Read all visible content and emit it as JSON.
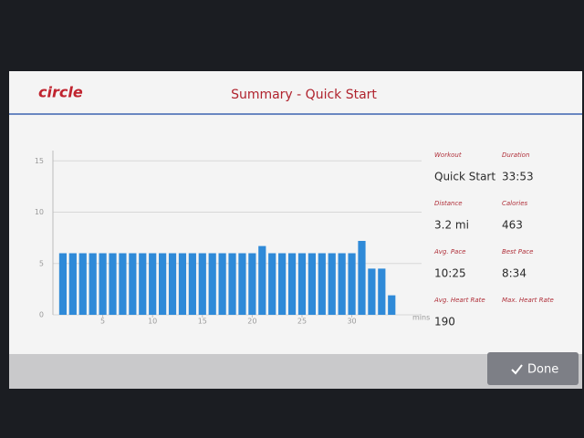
{
  "header": {
    "logo": "circle",
    "title": "Summary - Quick Start"
  },
  "chart_data": {
    "type": "bar",
    "x": [
      1,
      2,
      3,
      4,
      5,
      6,
      7,
      8,
      9,
      10,
      11,
      12,
      13,
      14,
      15,
      16,
      17,
      18,
      19,
      20,
      21,
      22,
      23,
      24,
      25,
      26,
      27,
      28,
      29,
      30,
      31,
      32,
      33,
      34
    ],
    "values": [
      6,
      6,
      6,
      6,
      6,
      6,
      6,
      6,
      6,
      6,
      6,
      6,
      6,
      6,
      6,
      6,
      6,
      6,
      6,
      6,
      6.7,
      6,
      6,
      6,
      6,
      6,
      6,
      6,
      6,
      6,
      7.2,
      4.5,
      4.5,
      1.9
    ],
    "color": "#2f8ad8",
    "xlim": [
      0,
      37
    ],
    "ylim": [
      0,
      16
    ],
    "xticks": [
      5,
      10,
      15,
      20,
      25,
      30
    ],
    "yticks": [
      0,
      5,
      10,
      15
    ],
    "x_label": "mins",
    "grid": true
  },
  "stats": [
    {
      "label": "Workout",
      "value": "Quick Start"
    },
    {
      "label": "Duration",
      "value": "33:53"
    },
    {
      "label": "Distance",
      "value": "3.2 mi"
    },
    {
      "label": "Calories",
      "value": "463"
    },
    {
      "label": "Avg. Pace",
      "value": "10:25"
    },
    {
      "label": "Best Pace",
      "value": "8:34"
    },
    {
      "label": "Avg. Heart Rate",
      "value": "190"
    },
    {
      "label": "Max. Heart Rate"
    }
  ],
  "button": {
    "label": "Done"
  }
}
